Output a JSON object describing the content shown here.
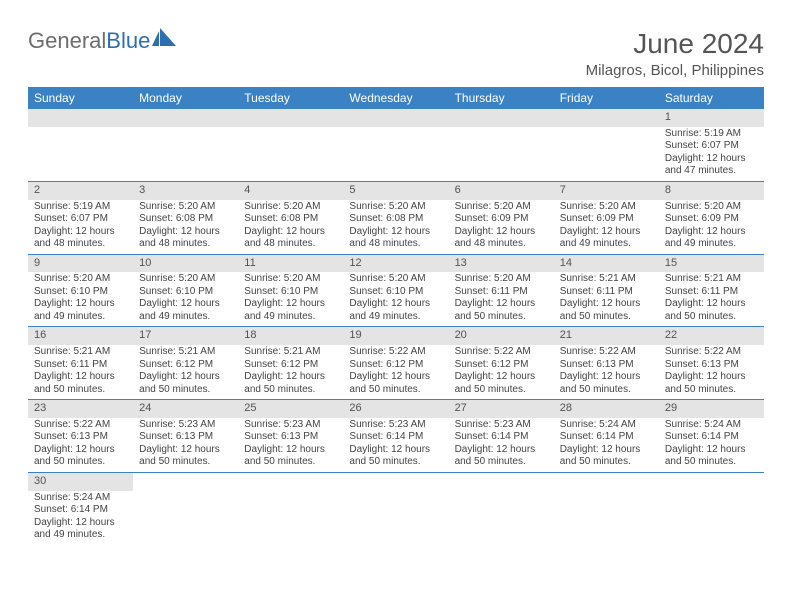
{
  "colors": {
    "header_bg": "#3b82c4",
    "header_text": "#ffffff",
    "dayhead_bg": "#e4e4e4",
    "dayhead_text": "#535353",
    "row_border": "#3b82c4",
    "body_text": "#444444",
    "logo_gray": "#6d6d6d",
    "logo_blue": "#2f6fb0",
    "title_color": "#555555"
  },
  "logo": {
    "text_gray": "General",
    "text_blue": "Blue"
  },
  "title": "June 2024",
  "location": "Milagros, Bicol, Philippines",
  "day_labels": [
    "Sunday",
    "Monday",
    "Tuesday",
    "Wednesday",
    "Thursday",
    "Friday",
    "Saturday"
  ],
  "weeks": [
    [
      null,
      null,
      null,
      null,
      null,
      null,
      {
        "n": "1",
        "sr": "Sunrise: 5:19 AM",
        "ss": "Sunset: 6:07 PM",
        "d1": "Daylight: 12 hours",
        "d2": "and 47 minutes."
      }
    ],
    [
      {
        "n": "2",
        "sr": "Sunrise: 5:19 AM",
        "ss": "Sunset: 6:07 PM",
        "d1": "Daylight: 12 hours",
        "d2": "and 48 minutes."
      },
      {
        "n": "3",
        "sr": "Sunrise: 5:20 AM",
        "ss": "Sunset: 6:08 PM",
        "d1": "Daylight: 12 hours",
        "d2": "and 48 minutes."
      },
      {
        "n": "4",
        "sr": "Sunrise: 5:20 AM",
        "ss": "Sunset: 6:08 PM",
        "d1": "Daylight: 12 hours",
        "d2": "and 48 minutes."
      },
      {
        "n": "5",
        "sr": "Sunrise: 5:20 AM",
        "ss": "Sunset: 6:08 PM",
        "d1": "Daylight: 12 hours",
        "d2": "and 48 minutes."
      },
      {
        "n": "6",
        "sr": "Sunrise: 5:20 AM",
        "ss": "Sunset: 6:09 PM",
        "d1": "Daylight: 12 hours",
        "d2": "and 48 minutes."
      },
      {
        "n": "7",
        "sr": "Sunrise: 5:20 AM",
        "ss": "Sunset: 6:09 PM",
        "d1": "Daylight: 12 hours",
        "d2": "and 49 minutes."
      },
      {
        "n": "8",
        "sr": "Sunrise: 5:20 AM",
        "ss": "Sunset: 6:09 PM",
        "d1": "Daylight: 12 hours",
        "d2": "and 49 minutes."
      }
    ],
    [
      {
        "n": "9",
        "sr": "Sunrise: 5:20 AM",
        "ss": "Sunset: 6:10 PM",
        "d1": "Daylight: 12 hours",
        "d2": "and 49 minutes."
      },
      {
        "n": "10",
        "sr": "Sunrise: 5:20 AM",
        "ss": "Sunset: 6:10 PM",
        "d1": "Daylight: 12 hours",
        "d2": "and 49 minutes."
      },
      {
        "n": "11",
        "sr": "Sunrise: 5:20 AM",
        "ss": "Sunset: 6:10 PM",
        "d1": "Daylight: 12 hours",
        "d2": "and 49 minutes."
      },
      {
        "n": "12",
        "sr": "Sunrise: 5:20 AM",
        "ss": "Sunset: 6:10 PM",
        "d1": "Daylight: 12 hours",
        "d2": "and 49 minutes."
      },
      {
        "n": "13",
        "sr": "Sunrise: 5:20 AM",
        "ss": "Sunset: 6:11 PM",
        "d1": "Daylight: 12 hours",
        "d2": "and 50 minutes."
      },
      {
        "n": "14",
        "sr": "Sunrise: 5:21 AM",
        "ss": "Sunset: 6:11 PM",
        "d1": "Daylight: 12 hours",
        "d2": "and 50 minutes."
      },
      {
        "n": "15",
        "sr": "Sunrise: 5:21 AM",
        "ss": "Sunset: 6:11 PM",
        "d1": "Daylight: 12 hours",
        "d2": "and 50 minutes."
      }
    ],
    [
      {
        "n": "16",
        "sr": "Sunrise: 5:21 AM",
        "ss": "Sunset: 6:11 PM",
        "d1": "Daylight: 12 hours",
        "d2": "and 50 minutes."
      },
      {
        "n": "17",
        "sr": "Sunrise: 5:21 AM",
        "ss": "Sunset: 6:12 PM",
        "d1": "Daylight: 12 hours",
        "d2": "and 50 minutes."
      },
      {
        "n": "18",
        "sr": "Sunrise: 5:21 AM",
        "ss": "Sunset: 6:12 PM",
        "d1": "Daylight: 12 hours",
        "d2": "and 50 minutes."
      },
      {
        "n": "19",
        "sr": "Sunrise: 5:22 AM",
        "ss": "Sunset: 6:12 PM",
        "d1": "Daylight: 12 hours",
        "d2": "and 50 minutes."
      },
      {
        "n": "20",
        "sr": "Sunrise: 5:22 AM",
        "ss": "Sunset: 6:12 PM",
        "d1": "Daylight: 12 hours",
        "d2": "and 50 minutes."
      },
      {
        "n": "21",
        "sr": "Sunrise: 5:22 AM",
        "ss": "Sunset: 6:13 PM",
        "d1": "Daylight: 12 hours",
        "d2": "and 50 minutes."
      },
      {
        "n": "22",
        "sr": "Sunrise: 5:22 AM",
        "ss": "Sunset: 6:13 PM",
        "d1": "Daylight: 12 hours",
        "d2": "and 50 minutes."
      }
    ],
    [
      {
        "n": "23",
        "sr": "Sunrise: 5:22 AM",
        "ss": "Sunset: 6:13 PM",
        "d1": "Daylight: 12 hours",
        "d2": "and 50 minutes."
      },
      {
        "n": "24",
        "sr": "Sunrise: 5:23 AM",
        "ss": "Sunset: 6:13 PM",
        "d1": "Daylight: 12 hours",
        "d2": "and 50 minutes."
      },
      {
        "n": "25",
        "sr": "Sunrise: 5:23 AM",
        "ss": "Sunset: 6:13 PM",
        "d1": "Daylight: 12 hours",
        "d2": "and 50 minutes."
      },
      {
        "n": "26",
        "sr": "Sunrise: 5:23 AM",
        "ss": "Sunset: 6:14 PM",
        "d1": "Daylight: 12 hours",
        "d2": "and 50 minutes."
      },
      {
        "n": "27",
        "sr": "Sunrise: 5:23 AM",
        "ss": "Sunset: 6:14 PM",
        "d1": "Daylight: 12 hours",
        "d2": "and 50 minutes."
      },
      {
        "n": "28",
        "sr": "Sunrise: 5:24 AM",
        "ss": "Sunset: 6:14 PM",
        "d1": "Daylight: 12 hours",
        "d2": "and 50 minutes."
      },
      {
        "n": "29",
        "sr": "Sunrise: 5:24 AM",
        "ss": "Sunset: 6:14 PM",
        "d1": "Daylight: 12 hours",
        "d2": "and 50 minutes."
      }
    ],
    [
      {
        "n": "30",
        "sr": "Sunrise: 5:24 AM",
        "ss": "Sunset: 6:14 PM",
        "d1": "Daylight: 12 hours",
        "d2": "and 49 minutes."
      },
      null,
      null,
      null,
      null,
      null,
      null
    ]
  ]
}
